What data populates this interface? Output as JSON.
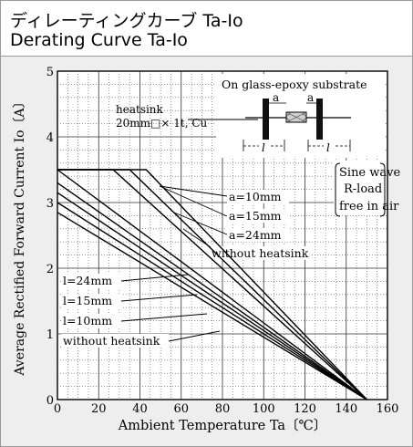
{
  "header": {
    "title_jp": "ディレーティングカーブ Ta-Io",
    "title_en": "Derating Curve Ta-Io"
  },
  "chart_data": {
    "type": "line",
    "xlabel": "Ambient Temperature Ta〔℃〕",
    "ylabel": "Average Rectified Forward Current Io〔A〕",
    "xlim": [
      0,
      160
    ],
    "ylim": [
      0,
      5
    ],
    "xticks": [
      0,
      20,
      40,
      60,
      80,
      100,
      120,
      140,
      160
    ],
    "yticks": [
      0,
      1,
      2,
      3,
      4,
      5
    ],
    "grid": true,
    "series": [
      {
        "name": "a=10mm",
        "x": [
          0,
          43,
          150
        ],
        "y": [
          3.5,
          3.5,
          0
        ]
      },
      {
        "name": "a=15mm",
        "x": [
          0,
          35,
          150
        ],
        "y": [
          3.5,
          3.5,
          0
        ]
      },
      {
        "name": "a=24mm",
        "x": [
          0,
          27,
          150
        ],
        "y": [
          3.5,
          3.5,
          0
        ]
      },
      {
        "name": "without heatsink",
        "x": [
          0,
          150
        ],
        "y": [
          3.5,
          0
        ]
      },
      {
        "name": "l=24mm",
        "x": [
          0,
          150
        ],
        "y": [
          3.3,
          0
        ]
      },
      {
        "name": "l=15mm",
        "x": [
          0,
          150
        ],
        "y": [
          3.15,
          0
        ]
      },
      {
        "name": "l=10mm",
        "x": [
          0,
          150
        ],
        "y": [
          3.0,
          0
        ]
      },
      {
        "name": "without heatsink",
        "x": [
          0,
          150
        ],
        "y": [
          2.85,
          0
        ]
      }
    ],
    "annotations": {
      "substrate": "On glass-epoxy substrate",
      "heatsink_line1": "heatsink",
      "heatsink_line2": "20mm□× 1t, Cu",
      "dim_a": "a",
      "dim_l": "l",
      "cond1": "Sine wave",
      "cond2": "R-load",
      "cond3": "free in air"
    },
    "labels": {
      "a10": "a=10mm",
      "a15": "a=15mm",
      "a24": "a=24mm",
      "wo_upper": "without heatsink",
      "l24": "l=24mm",
      "l15": "l=15mm",
      "l10": "l=10mm",
      "wo_lower": "without heatsink"
    }
  }
}
